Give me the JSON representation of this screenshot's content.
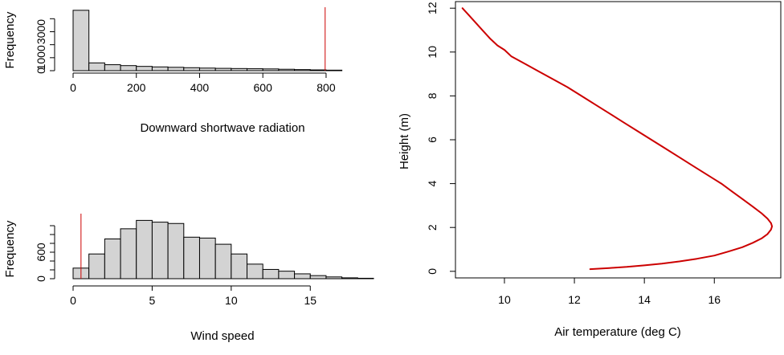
{
  "chart_data": [
    {
      "id": "swr",
      "type": "bar",
      "subtype": "histogram",
      "xlabel": "Downward shortwave radiation",
      "ylabel": "Frequency",
      "xlim": [
        0,
        950
      ],
      "ylim": [
        0,
        4700
      ],
      "xticks": [
        0,
        200,
        400,
        600,
        800
      ],
      "yticks": [
        0,
        1000,
        2000,
        3000,
        4000
      ],
      "ytick_labels": [
        {
          "value": 0,
          "label": "0"
        },
        {
          "value": 1000,
          "label": "1000"
        },
        {
          "value": 3000,
          "label": "3000"
        }
      ],
      "bin_edges": [
        0,
        50,
        100,
        150,
        200,
        250,
        300,
        350,
        400,
        450,
        500,
        550,
        600,
        650,
        700,
        750,
        800,
        850
      ],
      "counts": [
        4650,
        600,
        460,
        390,
        330,
        290,
        260,
        230,
        200,
        180,
        165,
        150,
        135,
        110,
        85,
        60,
        40
      ],
      "bar_color": "#d3d3d3",
      "vline": {
        "x": 797,
        "color": "#cc0000"
      }
    },
    {
      "id": "wind",
      "type": "bar",
      "subtype": "histogram",
      "xlabel": "Wind speed",
      "ylabel": "Frequency",
      "xlim": [
        0,
        19
      ],
      "ylim": [
        0,
        1400
      ],
      "xticks": [
        0,
        5,
        10,
        15
      ],
      "yticks": [
        0,
        200,
        400,
        600,
        800,
        1000,
        1200
      ],
      "ytick_labels": [
        {
          "value": 0,
          "label": "0"
        },
        {
          "value": 600,
          "label": "600"
        }
      ],
      "bin_edges": [
        0,
        1,
        2,
        3,
        4,
        5,
        6,
        7,
        8,
        9,
        10,
        11,
        12,
        13,
        14,
        15,
        16,
        17,
        18,
        19
      ],
      "counts": [
        240,
        560,
        900,
        1130,
        1320,
        1280,
        1250,
        940,
        920,
        780,
        560,
        330,
        210,
        170,
        110,
        70,
        40,
        20,
        10
      ],
      "bar_color": "#d3d3d3",
      "vline": {
        "x": 0.5,
        "color": "#cc0000"
      }
    },
    {
      "id": "profile",
      "type": "line",
      "xlabel": "Air temperature (deg C)",
      "ylabel": "Height (m)",
      "xlim": [
        8.6,
        17.9
      ],
      "ylim": [
        -0.3,
        12.3
      ],
      "xticks": [
        10,
        12,
        14,
        16
      ],
      "yticks": [
        0,
        2,
        4,
        6,
        8,
        10,
        12
      ],
      "series": [
        {
          "color": "#cc0000",
          "x": [
            12.45,
            13.0,
            13.5,
            14.0,
            14.5,
            15.0,
            15.5,
            16.0,
            16.4,
            16.8,
            17.1,
            17.35,
            17.52,
            17.62,
            17.65,
            17.62,
            17.52,
            17.35,
            17.1,
            16.8,
            16.5,
            16.2,
            15.8,
            15.4,
            15.0,
            14.6,
            14.2,
            13.8,
            13.4,
            13.0,
            12.6,
            12.2,
            11.8,
            11.4,
            11.0,
            10.6,
            10.2,
            10.0,
            9.8,
            9.6,
            9.4,
            9.2,
            9.0,
            8.8
          ],
          "y": [
            0.1,
            0.15,
            0.2,
            0.27,
            0.35,
            0.45,
            0.57,
            0.72,
            0.9,
            1.1,
            1.3,
            1.5,
            1.7,
            1.9,
            2.05,
            2.2,
            2.4,
            2.65,
            2.95,
            3.3,
            3.65,
            4.0,
            4.4,
            4.8,
            5.2,
            5.6,
            6.0,
            6.4,
            6.8,
            7.2,
            7.6,
            8.0,
            8.4,
            8.75,
            9.1,
            9.45,
            9.8,
            10.1,
            10.3,
            10.6,
            10.95,
            11.3,
            11.65,
            12.0
          ]
        }
      ]
    }
  ]
}
